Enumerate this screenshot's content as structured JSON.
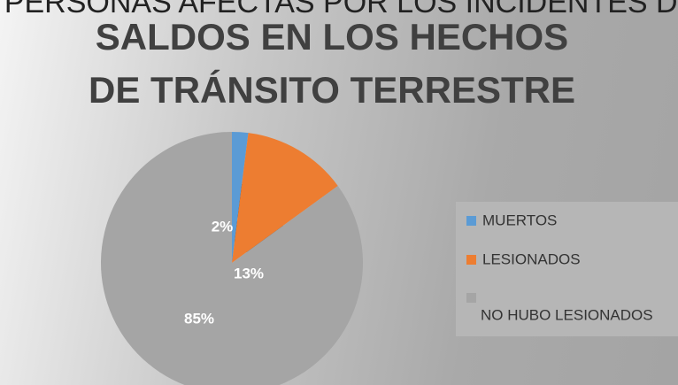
{
  "chart_data": {
    "type": "pie",
    "heading": "DE PERSONAS AFECTAS POR LOS INCIDENTES DE T",
    "title": "SALDOS EN LOS HECHOS DE TRÁNSITO TERRESTRE",
    "categories": [
      "MUERTOS",
      "LESIONADOS",
      "NO HUBO LESIONADOS"
    ],
    "values": [
      2,
      13,
      85
    ],
    "value_labels": [
      "2%",
      "13%",
      "85%"
    ],
    "colors": [
      "#5b9bd5",
      "#ed7d31",
      "#a5a5a5"
    ],
    "legend": "right"
  }
}
